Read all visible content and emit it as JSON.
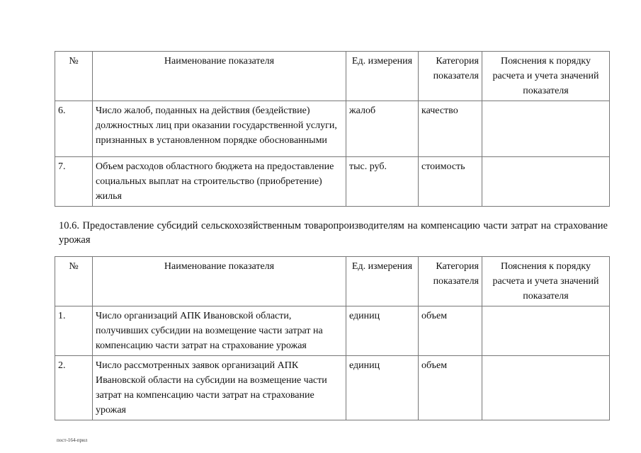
{
  "headers": {
    "num": "№",
    "name": "Наименование показателя",
    "unit": "Ед. измерения",
    "category": "Категория показателя",
    "notes": "Пояснения к порядку расчета и учета значений показателя"
  },
  "table1": {
    "rows": [
      {
        "num": "6.",
        "name": "Число жалоб, поданных на действия (бездействие) должностных лиц при оказании государственной услуги, признанных в установленном порядке обоснованными",
        "unit": "жалоб",
        "category": "качество",
        "notes": ""
      },
      {
        "num": "7.",
        "name": "Объем расходов областного бюджета на предоставление социальных выплат на строительство (приобретение) жилья",
        "unit": "тыс. руб.",
        "category": "стоимость",
        "notes": ""
      }
    ]
  },
  "section_title": "10.6. Предоставление субсидий сельскохозяйственным товаропроизводителям на компенсацию части затрат на страхование урожая",
  "table2": {
    "rows": [
      {
        "num": "1.",
        "name": "Число организаций АПК Ивановской области, получивших субсидии на возмещение части затрат на компенсацию части затрат на страхование урожая",
        "unit": "единиц",
        "category": "объем",
        "notes": ""
      },
      {
        "num": "2.",
        "name": "Число рассмотренных заявок организаций АПК Ивановской области на субсидии на возмещение части затрат на компенсацию части затрат на страхование урожая",
        "unit": "единиц",
        "category": "объем",
        "notes": ""
      }
    ]
  },
  "footer": "пост-164-прил"
}
